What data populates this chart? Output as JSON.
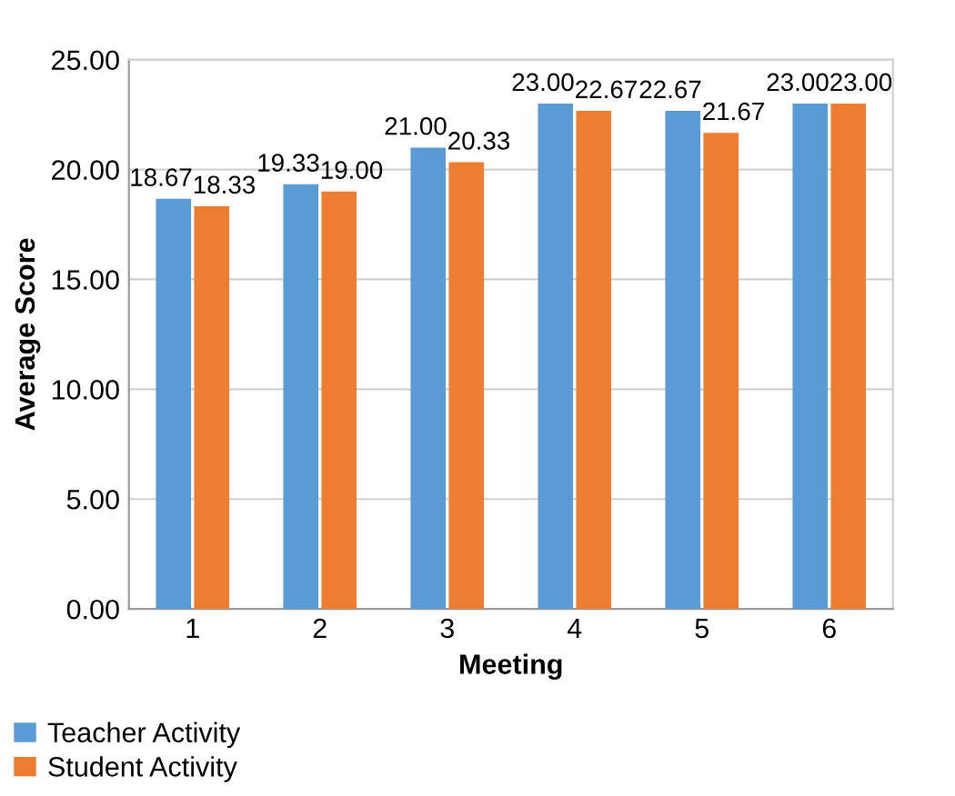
{
  "chart_data": {
    "type": "bar",
    "xlabel": "Meeting",
    "ylabel": "Average Score",
    "categories": [
      "1",
      "2",
      "3",
      "4",
      "5",
      "6"
    ],
    "series": [
      {
        "name": "Teacher Activity",
        "color": "#5b9bd5",
        "values": [
          18.67,
          19.33,
          21.0,
          23.0,
          22.67,
          23.0
        ],
        "value_labels": [
          "18.67",
          "19.33",
          "21.00",
          "23.00",
          "22.67",
          "23.00"
        ]
      },
      {
        "name": "Student Activity",
        "color": "#ed7d31",
        "values": [
          18.33,
          19.0,
          20.33,
          22.67,
          21.67,
          23.0
        ],
        "value_labels": [
          "18.33",
          "19.00",
          "20.33",
          "22.67",
          "21.67",
          "23.00"
        ]
      }
    ],
    "ylim": [
      0,
      25
    ],
    "yticks": [
      {
        "value": 0,
        "label": "0.00"
      },
      {
        "value": 5,
        "label": "5.00"
      },
      {
        "value": 10,
        "label": "10.00"
      },
      {
        "value": 15,
        "label": "15.00"
      },
      {
        "value": 20,
        "label": "20.00"
      },
      {
        "value": 25,
        "label": "25.00"
      }
    ],
    "grid": "y",
    "legend": "bottom left"
  }
}
